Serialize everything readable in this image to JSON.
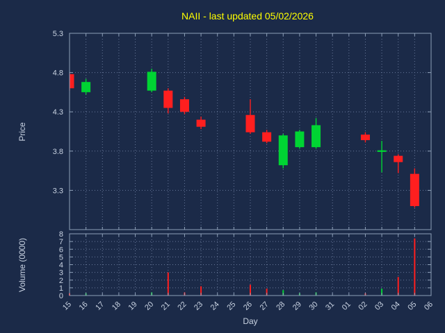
{
  "title": "NAII - last updated 05/02/2026",
  "colors": {
    "background": "#1b2a48",
    "title_text": "#ffff00",
    "axis_text": "#c9d3e2",
    "border": "#8ea0b8",
    "grid": "#68789a",
    "up": "#00d433",
    "down": "#ff1f1f"
  },
  "chart_data": {
    "type": "candlestick",
    "title": "NAII - last updated 05/02/2026",
    "xlabel": "Day",
    "grid": "dotted",
    "panels": [
      "price",
      "volume"
    ],
    "price_axis": {
      "label": "Price",
      "ticks": [
        5.3,
        4.8,
        4.3,
        3.8,
        3.3
      ],
      "range": [
        2.8,
        5.3
      ]
    },
    "volume_axis": {
      "label": "Volume (0000)",
      "ticks": [
        0,
        1,
        2,
        3,
        4,
        5,
        6,
        7,
        8
      ],
      "range": [
        0,
        8
      ]
    },
    "x_ticks": [
      "15",
      "16",
      "17",
      "18",
      "19",
      "20",
      "21",
      "22",
      "23",
      "24",
      "25",
      "26",
      "27",
      "28",
      "29",
      "30",
      "31",
      "01",
      "02",
      "03",
      "04",
      "05",
      "06"
    ],
    "candles": [
      {
        "day": "15",
        "open": 4.78,
        "high": 4.8,
        "low": 4.57,
        "close": 4.6,
        "volume": 0.3
      },
      {
        "day": "16",
        "open": 4.55,
        "high": 4.72,
        "low": 4.52,
        "close": 4.68,
        "volume": 0.3
      },
      {
        "day": "20",
        "open": 4.57,
        "high": 4.85,
        "low": 4.55,
        "close": 4.81,
        "volume": 0.4
      },
      {
        "day": "21",
        "open": 4.57,
        "high": 4.6,
        "low": 4.28,
        "close": 4.35,
        "volume": 3.0
      },
      {
        "day": "22",
        "open": 4.46,
        "high": 4.49,
        "low": 4.27,
        "close": 4.3,
        "volume": 0.4
      },
      {
        "day": "23",
        "open": 4.2,
        "high": 4.24,
        "low": 4.08,
        "close": 4.11,
        "volume": 1.2
      },
      {
        "day": "26",
        "open": 4.26,
        "high": 4.46,
        "low": 4.02,
        "close": 4.04,
        "volume": 1.4
      },
      {
        "day": "27",
        "open": 4.04,
        "high": 4.07,
        "low": 3.9,
        "close": 3.92,
        "volume": 0.9
      },
      {
        "day": "28",
        "open": 3.62,
        "high": 4.02,
        "low": 3.58,
        "close": 4.0,
        "volume": 0.7
      },
      {
        "day": "29",
        "open": 3.85,
        "high": 4.07,
        "low": 3.83,
        "close": 4.05,
        "volume": 0.3
      },
      {
        "day": "30",
        "open": 3.85,
        "high": 4.22,
        "low": 3.83,
        "close": 4.13,
        "volume": 0.4
      },
      {
        "day": "02",
        "open": 4.01,
        "high": 4.04,
        "low": 3.91,
        "close": 3.94,
        "volume": 0.3
      },
      {
        "day": "03",
        "open": 3.79,
        "high": 3.93,
        "low": 3.53,
        "close": 3.81,
        "volume": 0.9
      },
      {
        "day": "04",
        "open": 3.74,
        "high": 3.76,
        "low": 3.52,
        "close": 3.66,
        "volume": 2.4
      },
      {
        "day": "05",
        "open": 3.51,
        "high": 3.58,
        "low": 3.08,
        "close": 3.1,
        "volume": 7.4
      }
    ]
  }
}
